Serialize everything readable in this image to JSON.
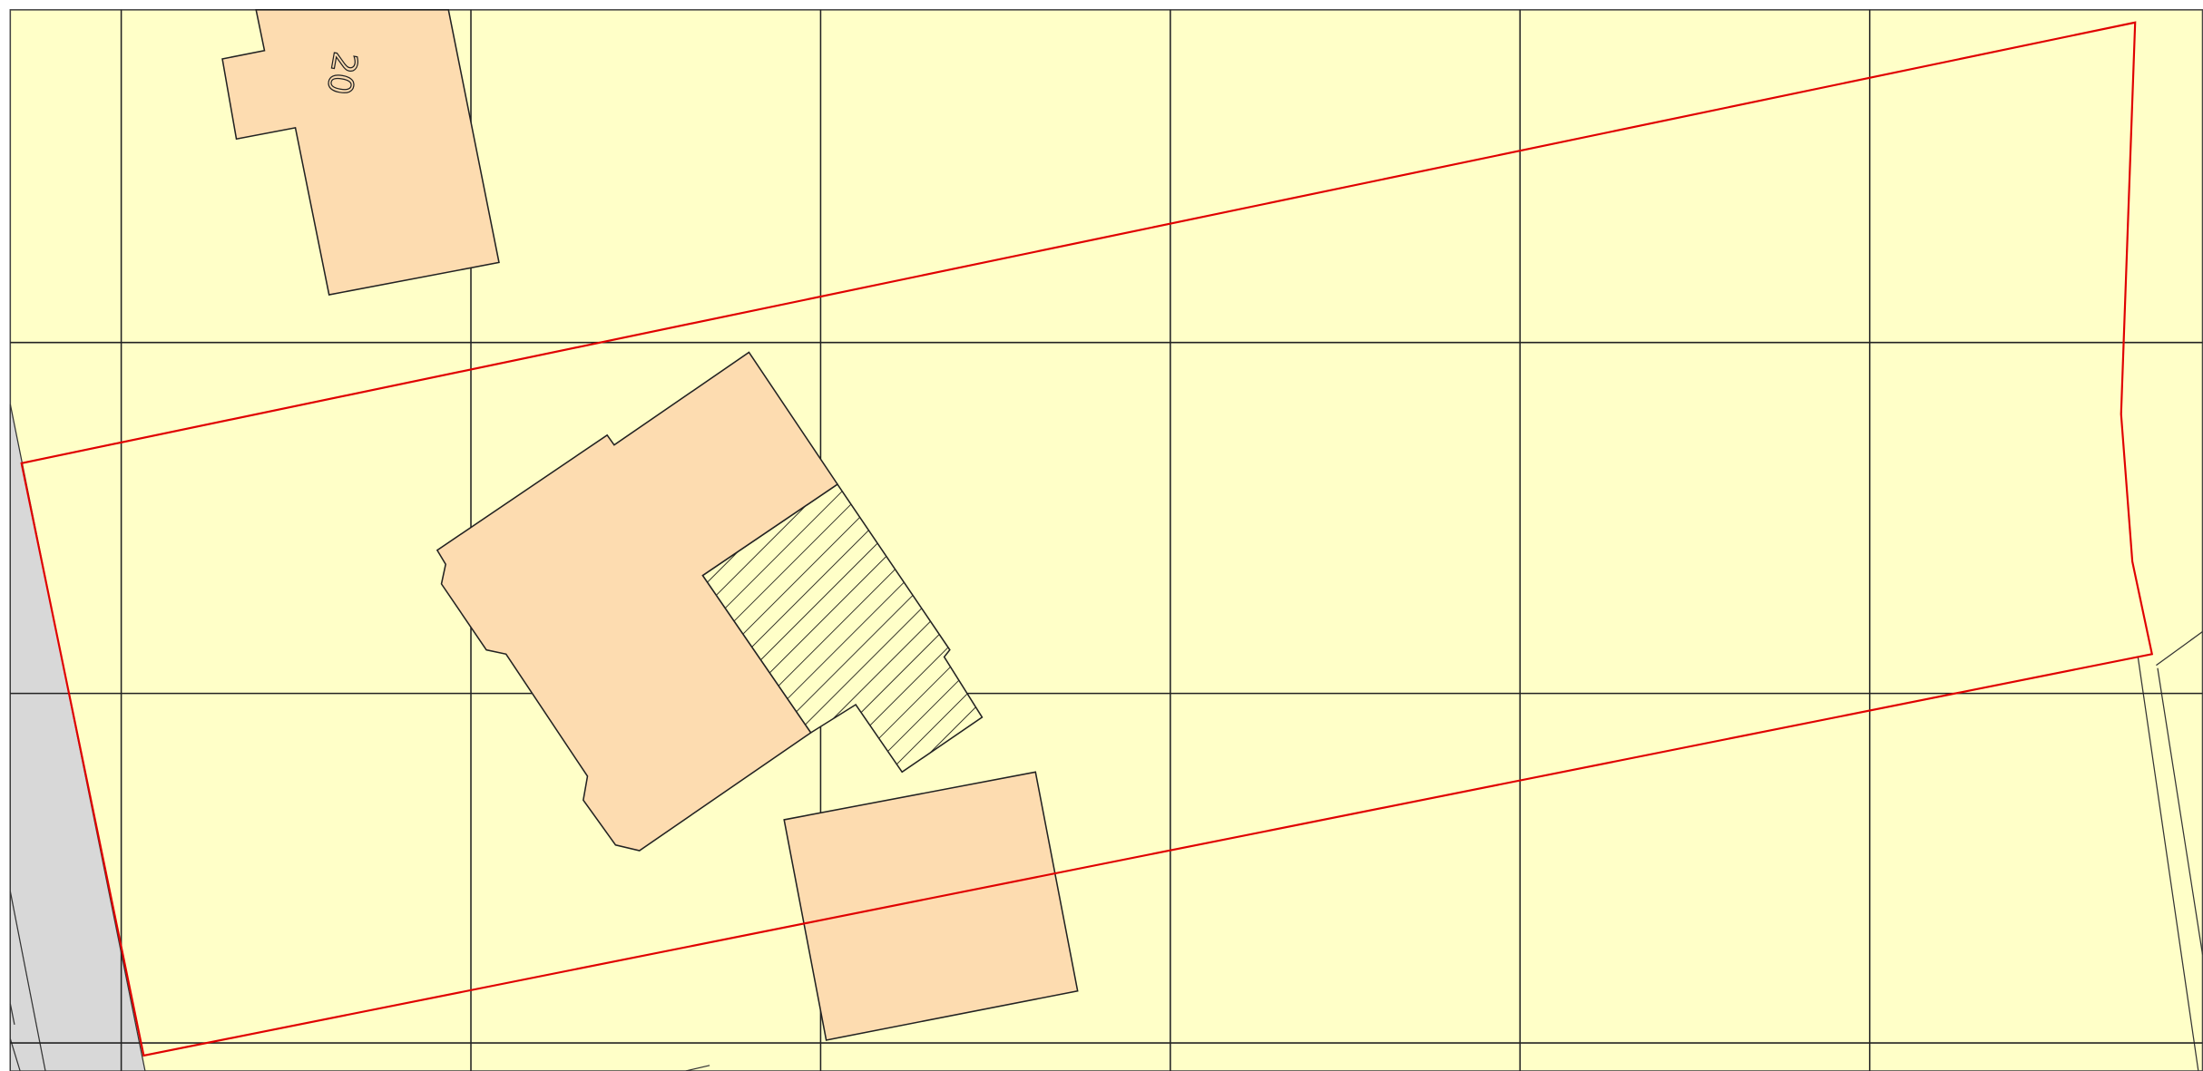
{
  "map": {
    "labels": [
      "20"
    ]
  }
}
